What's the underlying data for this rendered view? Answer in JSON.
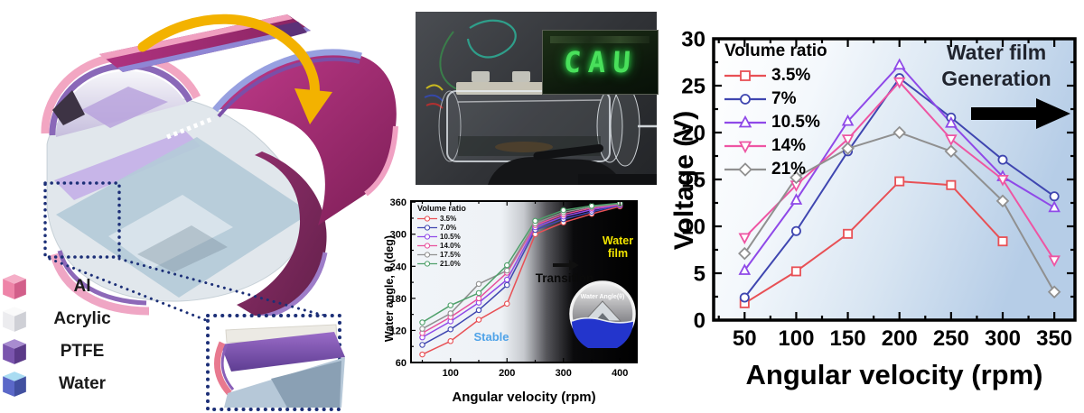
{
  "figure_title": "Water-filled rotating triboelectric nanogenerator figure",
  "materials": {
    "items": [
      {
        "label": "Al",
        "faces": {
          "top": "#f5aec7",
          "left": "#ee84a8",
          "right": "#d25f8a"
        }
      },
      {
        "label": "Acrylic",
        "faces": {
          "top": "#fafafa",
          "left": "#ececef",
          "right": "#cfd0d6"
        }
      },
      {
        "label": "PTFE",
        "faces": {
          "top": "#a88cd0",
          "left": "#7a55ad",
          "right": "#5b3a88"
        }
      },
      {
        "label": "Water",
        "faces": {
          "top": "#aadcf2",
          "left": "#5b68c8",
          "right": "#4250a0"
        }
      }
    ]
  },
  "photo": {
    "led_text": "CAU"
  },
  "chart_data": [
    {
      "id": "water-angle-chart",
      "type": "line",
      "title": "",
      "xlabel": "Angular velocity (rpm)",
      "ylabel": "Water angle, θ (deg)",
      "xlim": [
        30,
        430
      ],
      "ylim": [
        60,
        362
      ],
      "xticks": [
        100,
        200,
        300,
        400
      ],
      "yticks": [
        60,
        120,
        180,
        240,
        300,
        360
      ],
      "legend_title": "Volume ratio",
      "legend_position": "top-left",
      "grid": false,
      "x": [
        50,
        100,
        150,
        200,
        250,
        300,
        350,
        400
      ],
      "series": [
        {
          "name": "3.5%",
          "color": "#e85055",
          "marker": "circle",
          "values": [
            75,
            100,
            140,
            170,
            300,
            322,
            338,
            352
          ]
        },
        {
          "name": "7.0%",
          "color": "#3f46b0",
          "marker": "circle",
          "values": [
            93,
            122,
            158,
            205,
            308,
            328,
            342,
            354
          ]
        },
        {
          "name": "10.5%",
          "color": "#8f49e8",
          "marker": "circle",
          "values": [
            107,
            137,
            172,
            215,
            313,
            333,
            346,
            355
          ]
        },
        {
          "name": "14.0%",
          "color": "#e8509c",
          "marker": "circle",
          "values": [
            115,
            145,
            180,
            228,
            317,
            337,
            349,
            356
          ]
        },
        {
          "name": "17.5%",
          "color": "#909090",
          "marker": "circle",
          "values": [
            123,
            152,
            207,
            232,
            320,
            341,
            351,
            357
          ]
        },
        {
          "name": "21.0%",
          "color": "#4ea06a",
          "marker": "circle",
          "values": [
            135,
            167,
            190,
            242,
            325,
            345,
            353,
            358
          ]
        }
      ],
      "annotations": {
        "stable": "Stable",
        "transition": "Transition",
        "water_film_line1": "Water",
        "water_film_line2": "film",
        "inset_label": "Water Angle(θ)"
      }
    },
    {
      "id": "voltage-chart",
      "type": "line",
      "title": "",
      "xlabel": "Angular velocity (rpm)",
      "ylabel": "Voltage (V)",
      "xlim": [
        20,
        370
      ],
      "ylim": [
        0,
        30
      ],
      "xticks": [
        50,
        100,
        150,
        200,
        250,
        300,
        350
      ],
      "yticks": [
        0,
        5,
        10,
        15,
        20,
        25,
        30
      ],
      "legend_title": "Volume ratio",
      "legend_position": "top-left",
      "grid": false,
      "x": [
        50,
        100,
        150,
        200,
        250,
        300,
        350
      ],
      "series": [
        {
          "name": "3.5%",
          "color": "#e85055",
          "marker": "square",
          "values": [
            1.8,
            5.2,
            9.2,
            14.8,
            14.4,
            8.4,
            null
          ]
        },
        {
          "name": "7%",
          "color": "#3f46b0",
          "marker": "circle",
          "values": [
            2.4,
            9.5,
            18.0,
            25.8,
            21.6,
            17.1,
            13.2
          ]
        },
        {
          "name": "10.5%",
          "color": "#8f49e8",
          "marker": "triangle-up",
          "values": [
            5.3,
            12.8,
            21.2,
            27.2,
            21.0,
            15.3,
            12.0
          ]
        },
        {
          "name": "14%",
          "color": "#ee55a3",
          "marker": "triangle-down",
          "values": [
            8.8,
            14.4,
            19.3,
            25.4,
            19.3,
            15.0,
            6.4
          ]
        },
        {
          "name": "21%",
          "color": "#909090",
          "marker": "diamond",
          "values": [
            7.1,
            15.2,
            18.3,
            20.0,
            18.0,
            12.7,
            3.0
          ]
        }
      ],
      "annotations": {
        "water_film_line1": "Water film",
        "water_film_line2": "Generation"
      }
    }
  ]
}
